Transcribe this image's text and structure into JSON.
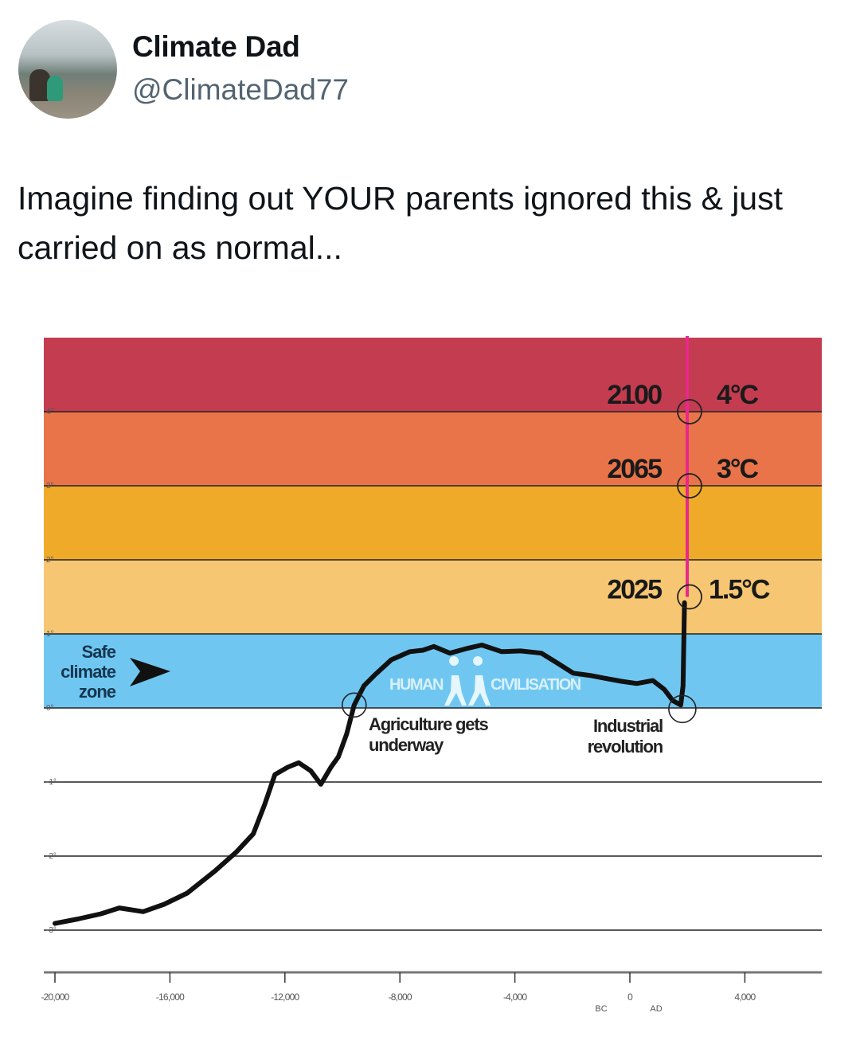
{
  "tweet": {
    "author_name": "Climate Dad",
    "handle": "@ClimateDad77",
    "text": "Imagine finding out YOUR parents ignored this & just carried on as normal..."
  },
  "chart_data": {
    "type": "line",
    "title": "",
    "xlabel": "",
    "ylabel": "",
    "xlim": [
      -20400,
      6800
    ],
    "ylim": [
      -3.4,
      5.0
    ],
    "x_ticks": [
      {
        "value": -20000,
        "label": "-20,000"
      },
      {
        "value": -16000,
        "label": "-16,000"
      },
      {
        "value": -12000,
        "label": "-12,000"
      },
      {
        "value": -8000,
        "label": "-8,000"
      },
      {
        "value": -4000,
        "label": "-4,000"
      },
      {
        "value": 0,
        "label": "0"
      },
      {
        "value": 4000,
        "label": "4,000"
      }
    ],
    "era_labels": {
      "bc": "BC",
      "ad": "AD"
    },
    "y_ticks": [
      {
        "value": 4,
        "label": "4°"
      },
      {
        "value": 3,
        "label": "3°"
      },
      {
        "value": 2,
        "label": "2°"
      },
      {
        "value": 1,
        "label": "1°"
      },
      {
        "value": 0,
        "label": "0°"
      },
      {
        "value": -1,
        "label": "-1°"
      },
      {
        "value": -2,
        "label": "-2°"
      },
      {
        "value": -3,
        "label": "-3°"
      }
    ],
    "bands": [
      {
        "from": 4,
        "to": 5.0,
        "color": "#c33c50"
      },
      {
        "from": 3,
        "to": 4,
        "color": "#e9744a"
      },
      {
        "from": 2,
        "to": 3,
        "color": "#f0aa2a"
      },
      {
        "from": 1,
        "to": 2,
        "color": "#f6c672"
      },
      {
        "from": 0,
        "to": 1,
        "color": "#6fc7f1"
      }
    ],
    "series": [
      {
        "color": "#111111",
        "points": [
          [
            -20000,
            -2.91
          ],
          [
            -19200,
            -2.85
          ],
          [
            -18400,
            -2.78
          ],
          [
            -17760,
            -2.7
          ],
          [
            -16930,
            -2.75
          ],
          [
            -16200,
            -2.65
          ],
          [
            -15400,
            -2.5
          ],
          [
            -14430,
            -2.2
          ],
          [
            -13700,
            -1.95
          ],
          [
            -13100,
            -1.7
          ],
          [
            -12700,
            -1.3
          ],
          [
            -12350,
            -0.9
          ],
          [
            -11900,
            -0.8
          ],
          [
            -11520,
            -0.74
          ],
          [
            -11100,
            -0.85
          ],
          [
            -10750,
            -1.03
          ],
          [
            -10400,
            -0.8
          ],
          [
            -10140,
            -0.66
          ],
          [
            -9850,
            -0.35
          ],
          [
            -9590,
            0.04
          ],
          [
            -9250,
            0.3
          ],
          [
            -8890,
            0.44
          ],
          [
            -8300,
            0.65
          ],
          [
            -7650,
            0.76
          ],
          [
            -7200,
            0.78
          ],
          [
            -6820,
            0.83
          ],
          [
            -6260,
            0.74
          ],
          [
            -5700,
            0.8
          ],
          [
            -5150,
            0.85
          ],
          [
            -4460,
            0.76
          ],
          [
            -3800,
            0.77
          ],
          [
            -3080,
            0.74
          ],
          [
            -2500,
            0.6
          ],
          [
            -1970,
            0.47
          ],
          [
            -1400,
            0.44
          ],
          [
            -860,
            0.4
          ],
          [
            -300,
            0.36
          ],
          [
            240,
            0.33
          ],
          [
            800,
            0.37
          ],
          [
            1200,
            0.25
          ],
          [
            1490,
            0.1
          ],
          [
            1770,
            0.04
          ],
          [
            1850,
            0.3
          ],
          [
            1900,
            1.42
          ]
        ]
      }
    ],
    "projection": {
      "color": "#e8288c",
      "milestones": [
        {
          "year_label": "2025",
          "temp_label": "1.5°C",
          "value": 1.5
        },
        {
          "year_label": "2065",
          "temp_label": "3°C",
          "value": 3
        },
        {
          "year_label": "2100",
          "temp_label": "4°C",
          "value": 4
        }
      ]
    },
    "annotations": {
      "safe_zone": [
        "Safe",
        "climate",
        "zone"
      ],
      "human": "HUMAN",
      "civilisation": "CIVILISATION",
      "agriculture": [
        "Agriculture gets",
        "underway"
      ],
      "agriculture_year": -9590,
      "industrial": [
        "Industrial",
        "revolution"
      ],
      "industrial_year": 1770
    },
    "grid": true
  }
}
